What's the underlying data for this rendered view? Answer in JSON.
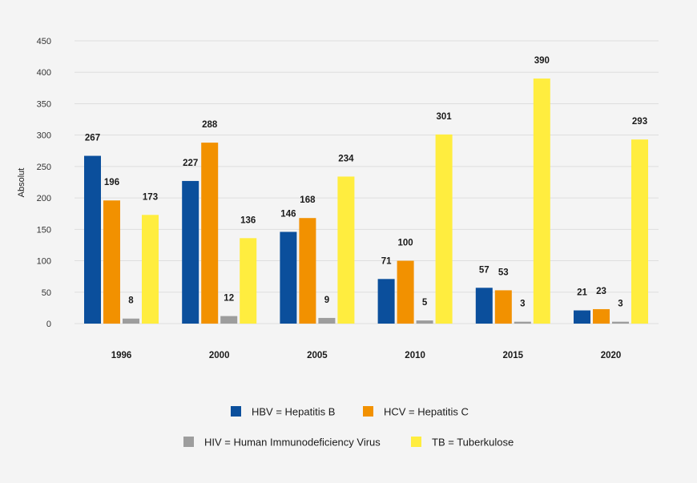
{
  "chart_data": {
    "type": "bar",
    "categories": [
      "1996",
      "2000",
      "2005",
      "2010",
      "2015",
      "2020"
    ],
    "series": [
      {
        "name": "HBV = Hepatitis B",
        "color": "#0b4f9c",
        "values": [
          267,
          227,
          146,
          71,
          57,
          21
        ]
      },
      {
        "name": "HCV = Hepatitis C",
        "color": "#f29100",
        "values": [
          196,
          288,
          168,
          100,
          53,
          23
        ]
      },
      {
        "name": "HIV = Human Immunodeficiency Virus",
        "color": "#9d9d9d",
        "values": [
          8,
          12,
          9,
          5,
          3,
          3
        ]
      },
      {
        "name": "TB = Tuberkulose",
        "color": "#ffed3f",
        "values": [
          173,
          136,
          234,
          301,
          390,
          293
        ]
      }
    ],
    "ylabel": "Absolut",
    "xlabel": "",
    "ylim": [
      0,
      450
    ],
    "yticks": [
      0,
      50,
      100,
      150,
      200,
      250,
      300,
      350,
      400,
      450
    ],
    "grid": true,
    "legend_position": "bottom",
    "data_labels": true
  }
}
